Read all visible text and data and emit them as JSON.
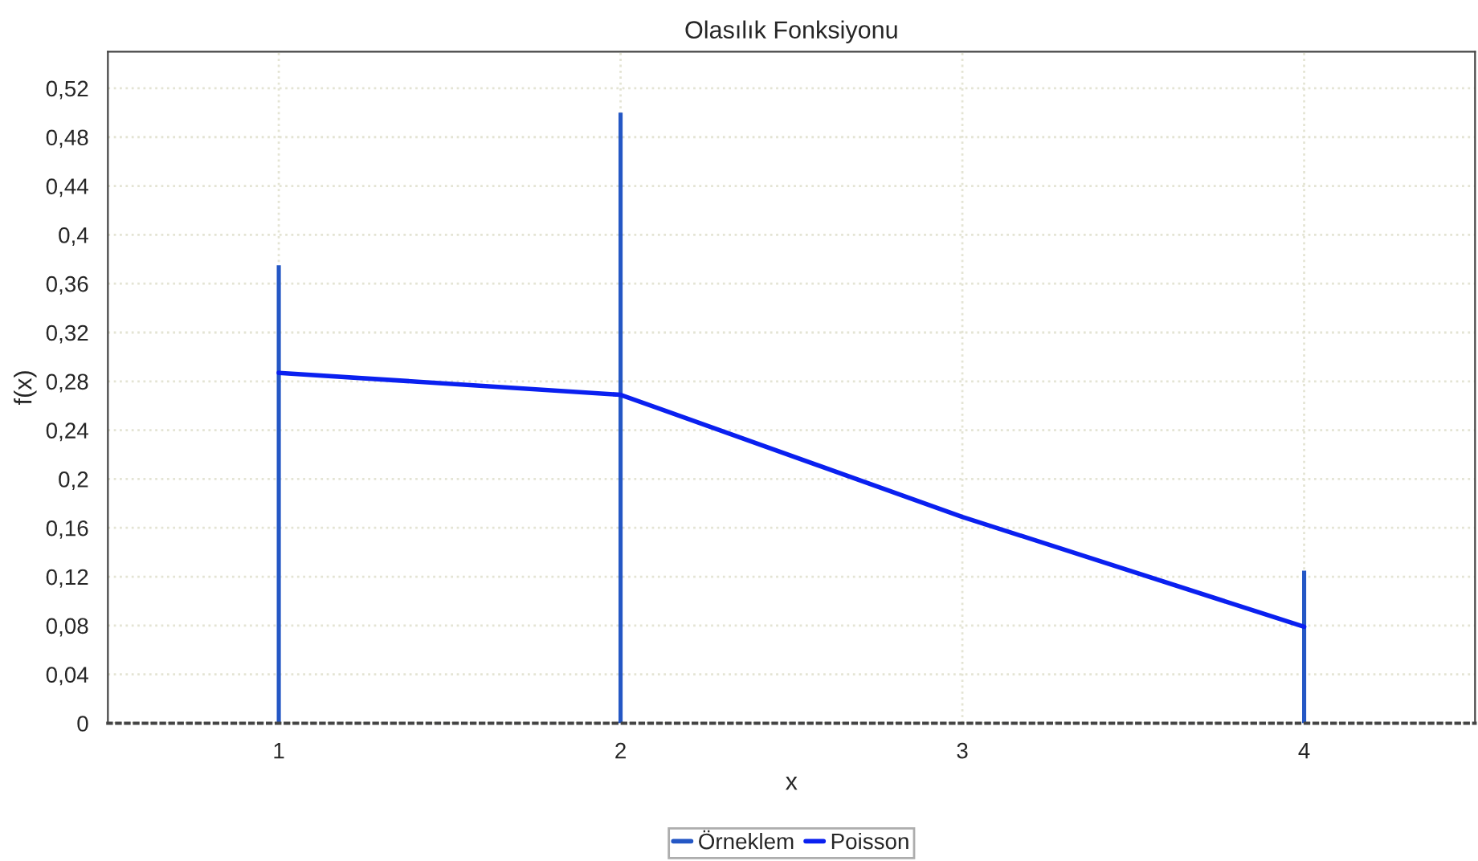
{
  "chart_data": {
    "type": "line",
    "title": "Olasılık Fonksiyonu",
    "xlabel": "x",
    "ylabel": "f(x)",
    "series": [
      {
        "name": "Örneklem",
        "type": "bar",
        "color": "#2457c5",
        "x": [
          1,
          2,
          4
        ],
        "values": [
          0.375,
          0.5,
          0.125
        ]
      },
      {
        "name": "Poisson",
        "color": "#0a20f0",
        "x": [
          1,
          2,
          3,
          4
        ],
        "values": [
          0.287,
          0.269,
          0.169,
          0.079
        ]
      }
    ],
    "xlim": [
      0.5,
      4.5
    ],
    "xticks": [
      1,
      2,
      3,
      4
    ],
    "ylim": [
      0,
      0.55
    ],
    "yticks": [
      {
        "value": 0,
        "label": "0"
      },
      {
        "value": 0.04,
        "label": "0,04"
      },
      {
        "value": 0.08,
        "label": "0,08"
      },
      {
        "value": 0.12,
        "label": "0,12"
      },
      {
        "value": 0.16,
        "label": "0,16"
      },
      {
        "value": 0.2,
        "label": "0,2"
      },
      {
        "value": 0.24,
        "label": "0,24"
      },
      {
        "value": 0.28,
        "label": "0,28"
      },
      {
        "value": 0.32,
        "label": "0,32"
      },
      {
        "value": 0.36,
        "label": "0,36"
      },
      {
        "value": 0.4,
        "label": "0,4"
      },
      {
        "value": 0.44,
        "label": "0,44"
      },
      {
        "value": 0.48,
        "label": "0,48"
      },
      {
        "value": 0.52,
        "label": "0,52"
      }
    ],
    "grid": true,
    "legend": "bottom",
    "marker": "none",
    "line_style": "solid"
  }
}
